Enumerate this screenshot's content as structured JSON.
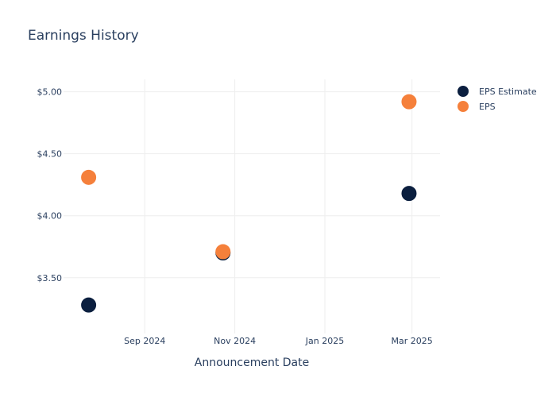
{
  "chart_data": {
    "type": "scatter",
    "title": "Earnings History",
    "xlabel": "Announcement Date",
    "ylabel": "",
    "x_type": "date",
    "xlim": [
      "2024-07-08",
      "2025-03-20"
    ],
    "ylim": [
      3.05,
      5.1
    ],
    "x_ticks": [
      {
        "value": "2024-09-01",
        "label": "Sep 2024"
      },
      {
        "value": "2024-11-01",
        "label": "Nov 2024"
      },
      {
        "value": "2025-01-01",
        "label": "Jan 2025"
      },
      {
        "value": "2025-03-01",
        "label": "Mar 2025"
      }
    ],
    "y_ticks": [
      {
        "value": 3.5,
        "label": "$3.50"
      },
      {
        "value": 4.0,
        "label": "$4.00"
      },
      {
        "value": 4.5,
        "label": "$4.50"
      },
      {
        "value": 5.0,
        "label": "$5.00"
      }
    ],
    "grid": true,
    "legend_position": "top-right",
    "series": [
      {
        "name": "EPS Estimate",
        "color": "#0b1f3f",
        "points": [
          {
            "x": "2024-07-25",
            "y": 3.28
          },
          {
            "x": "2024-10-24",
            "y": 3.7
          },
          {
            "x": "2025-02-27",
            "y": 4.18
          }
        ]
      },
      {
        "name": "EPS",
        "color": "#f5803b",
        "points": [
          {
            "x": "2024-07-25",
            "y": 4.31
          },
          {
            "x": "2024-10-24",
            "y": 3.71
          },
          {
            "x": "2025-02-27",
            "y": 4.92
          }
        ]
      }
    ]
  }
}
